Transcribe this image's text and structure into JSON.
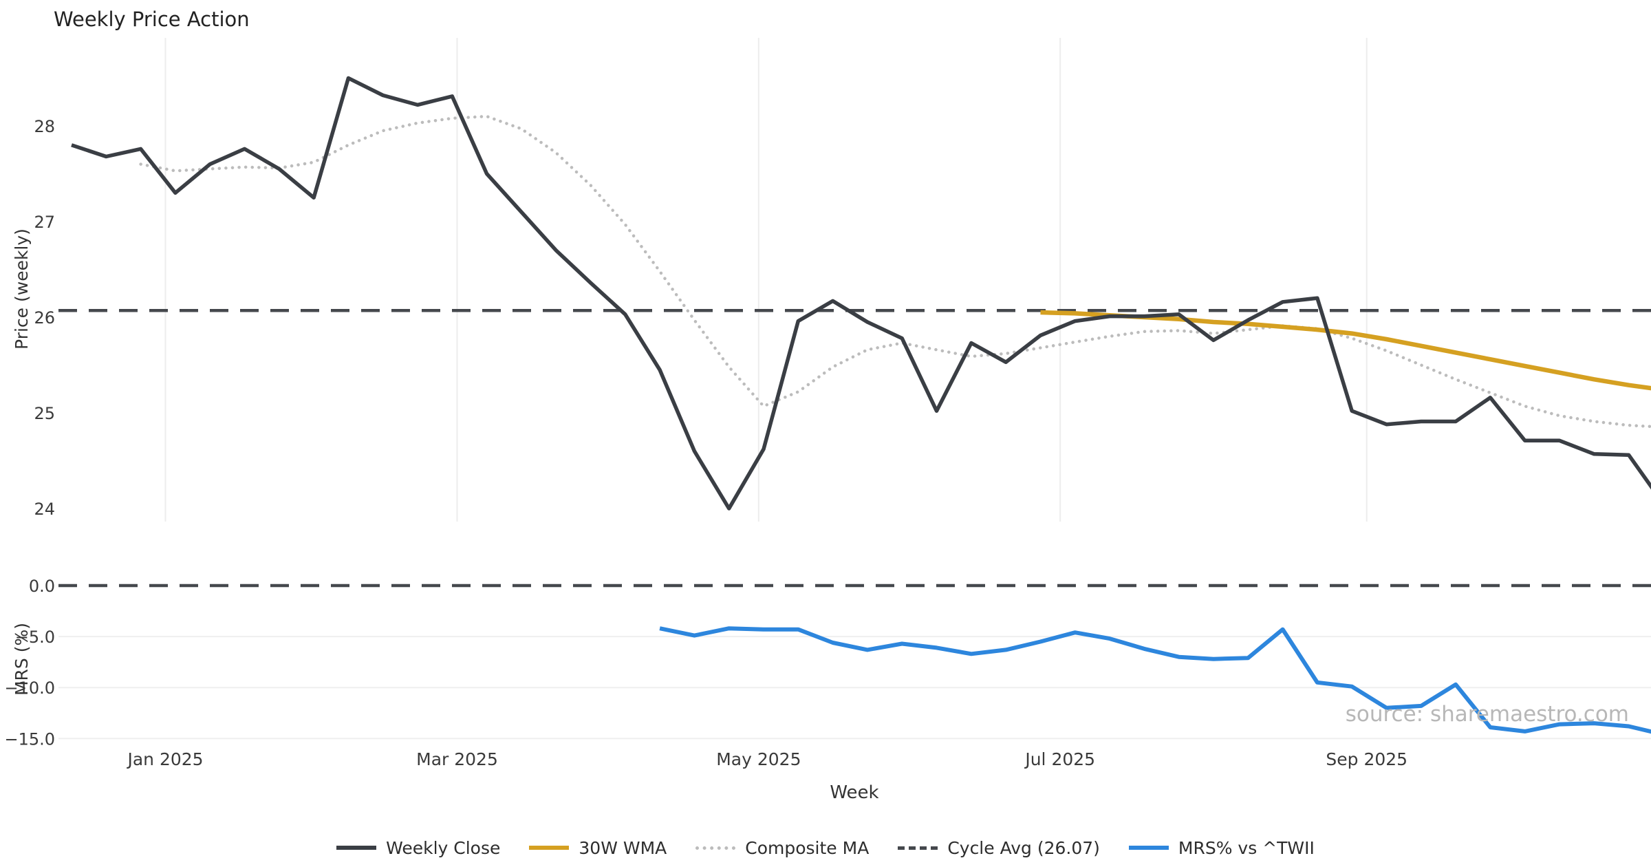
{
  "title": "Weekly Price Action",
  "watermark": "source: sharemaestro.com",
  "colors": {
    "weekly_close": "#3a3e44",
    "wma30": "#d5a021",
    "composite": "#bcbcbc",
    "cycle_avg": "#45484d",
    "mrs": "#2d86dd",
    "grid": "#ededed",
    "grid_bottom": "#efefef",
    "text": "#3a3a3a"
  },
  "legend": [
    {
      "label": "Weekly Close",
      "style": "solid",
      "color": "#3a3e44"
    },
    {
      "label": "30W WMA",
      "style": "solid",
      "color": "#d5a021"
    },
    {
      "label": "Composite MA",
      "style": "dotted",
      "color": "#bcbcbc"
    },
    {
      "label": "Cycle Avg (26.07)",
      "style": "dashed",
      "color": "#45484d"
    },
    {
      "label": "MRS% vs ^TWII",
      "style": "solid",
      "color": "#2d86dd"
    }
  ],
  "x_axis": {
    "label": "Week",
    "start_date": "2024-12-13",
    "freq_days": 7,
    "ticks": [
      {
        "label": "Jan 2025",
        "day": 19
      },
      {
        "label": "Mar 2025",
        "day": 78
      },
      {
        "label": "May 2025",
        "day": 139
      },
      {
        "label": "Jul 2025",
        "day": 200
      },
      {
        "label": "Sep 2025",
        "day": 262
      }
    ]
  },
  "chart_data": [
    {
      "type": "line",
      "panel": "price",
      "title": "Weekly Price Action",
      "xlabel": "Week",
      "ylabel": "Price (weekly)",
      "ylim": [
        23.8,
        28.95
      ],
      "yticks": [
        28,
        27,
        26,
        25,
        24
      ],
      "grid": "vertical-only",
      "legend_position": "bottom-center",
      "series": [
        {
          "name": "Weekly Close",
          "style": "solid",
          "color": "#3a3e44",
          "width": 5.5,
          "start_index": 0,
          "values": [
            27.8,
            27.68,
            27.76,
            27.3,
            27.6,
            27.76,
            27.55,
            27.25,
            28.5,
            28.32,
            28.22,
            28.31,
            27.5,
            27.1,
            26.7,
            26.36,
            26.03,
            25.45,
            24.6,
            24.0,
            24.62,
            25.96,
            26.17,
            25.95,
            25.78,
            25.02,
            25.73,
            25.53,
            25.81,
            25.96,
            26.01,
            26.01,
            26.03,
            25.76,
            25.97,
            26.16,
            26.2,
            25.02,
            24.88,
            24.91,
            24.91,
            25.16,
            24.71,
            24.71,
            24.57,
            24.56,
            24.05
          ]
        },
        {
          "name": "30W WMA",
          "style": "solid",
          "color": "#d5a021",
          "width": 6.5,
          "start_index": 28,
          "values": [
            26.05,
            26.04,
            26.02,
            26.0,
            25.98,
            25.95,
            25.93,
            25.9,
            25.87,
            25.83,
            25.77,
            25.7,
            25.63,
            25.56,
            25.49,
            25.42,
            25.35,
            25.29,
            25.24
          ]
        },
        {
          "name": "Composite MA",
          "style": "dotted",
          "color": "#bcbcbc",
          "width": 4.5,
          "start_index": 2,
          "values": [
            27.6,
            27.53,
            27.55,
            27.57,
            27.56,
            27.62,
            27.8,
            27.95,
            28.03,
            28.08,
            28.1,
            27.97,
            27.72,
            27.38,
            26.97,
            26.48,
            25.97,
            25.48,
            25.07,
            25.22,
            25.48,
            25.66,
            25.73,
            25.66,
            25.59,
            25.62,
            25.68,
            25.74,
            25.8,
            25.85,
            25.86,
            25.83,
            25.87,
            25.91,
            25.88,
            25.78,
            25.65,
            25.5,
            25.35,
            25.21,
            25.07,
            24.97,
            24.91,
            24.87,
            24.85
          ]
        },
        {
          "name": "Cycle Avg (26.07)",
          "style": "dashed",
          "color": "#45484d",
          "width": 4.5,
          "value": 26.07
        }
      ]
    },
    {
      "type": "line",
      "panel": "mrs",
      "ylabel": "MRS (%)",
      "ylim": [
        -15.5,
        0.6
      ],
      "yticks": [
        0.0,
        -5.0,
        -10.0,
        -15.0
      ],
      "grid": "horizontal-only",
      "series": [
        {
          "name": "MRS% vs ^TWII",
          "style": "solid",
          "color": "#2d86dd",
          "width": 6,
          "start_index": 17,
          "values": [
            -4.2,
            -4.9,
            -4.2,
            -4.3,
            -4.3,
            -5.6,
            -6.3,
            -5.7,
            -6.1,
            -6.7,
            -6.3,
            -5.5,
            -4.6,
            -5.2,
            -6.2,
            -7.0,
            -7.2,
            -7.1,
            -4.3,
            -9.5,
            -9.9,
            -12.0,
            -11.8,
            -9.7,
            -13.9,
            -14.3,
            -13.6,
            -13.5,
            -13.8,
            -14.6
          ]
        },
        {
          "name": "Zero line",
          "style": "dashed",
          "color": "#45484d",
          "width": 4.5,
          "value": 0.0
        }
      ]
    }
  ]
}
